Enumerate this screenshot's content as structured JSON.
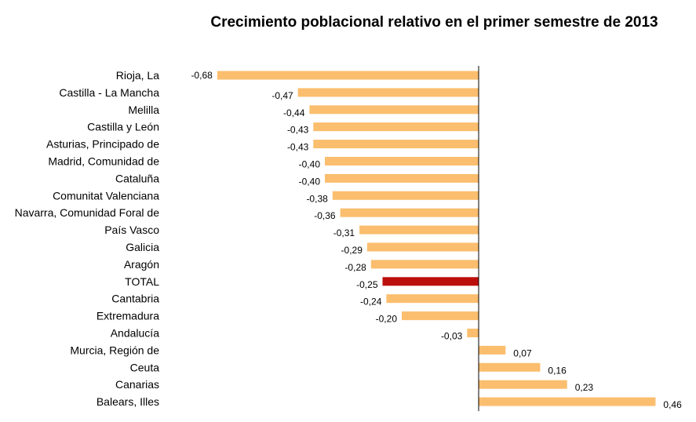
{
  "colors": {
    "bar": "#FBBE6E",
    "highlight": "#BB0F0C",
    "axis": "#000000"
  },
  "chart_data": {
    "type": "bar",
    "orientation": "horizontal",
    "title": "Crecimiento poblacional relativo en el primer semestre de 2013",
    "xlim": [
      -0.68,
      0.46
    ],
    "grid": false,
    "highlight_category": "TOTAL",
    "categories": [
      "Rioja, La",
      "Castilla - La Mancha",
      "Melilla",
      "Castilla y León",
      "Asturias, Principado de",
      "Madrid, Comunidad de",
      "Cataluña",
      "Comunitat Valenciana",
      "Navarra, Comunidad Foral de",
      "País Vasco",
      "Galicia",
      "Aragón",
      "TOTAL",
      "Cantabria",
      "Extremadura",
      "Andalucía",
      "Murcia, Región de",
      "Ceuta",
      "Canarias",
      "Balears, Illes"
    ],
    "values": [
      -0.68,
      -0.47,
      -0.44,
      -0.43,
      -0.43,
      -0.4,
      -0.4,
      -0.38,
      -0.36,
      -0.31,
      -0.29,
      -0.28,
      -0.25,
      -0.24,
      -0.2,
      -0.03,
      0.07,
      0.16,
      0.23,
      0.46
    ],
    "value_labels": [
      "-0,68",
      "-0,47",
      "-0,44",
      "-0,43",
      "-0,43",
      "-0,40",
      "-0,40",
      "-0,38",
      "-0,36",
      "-0,31",
      "-0,29",
      "-0,28",
      "-0,25",
      "-0,24",
      "-0,20",
      "-0,03",
      "0,07",
      "0,16",
      "0,23",
      "0,46"
    ]
  }
}
